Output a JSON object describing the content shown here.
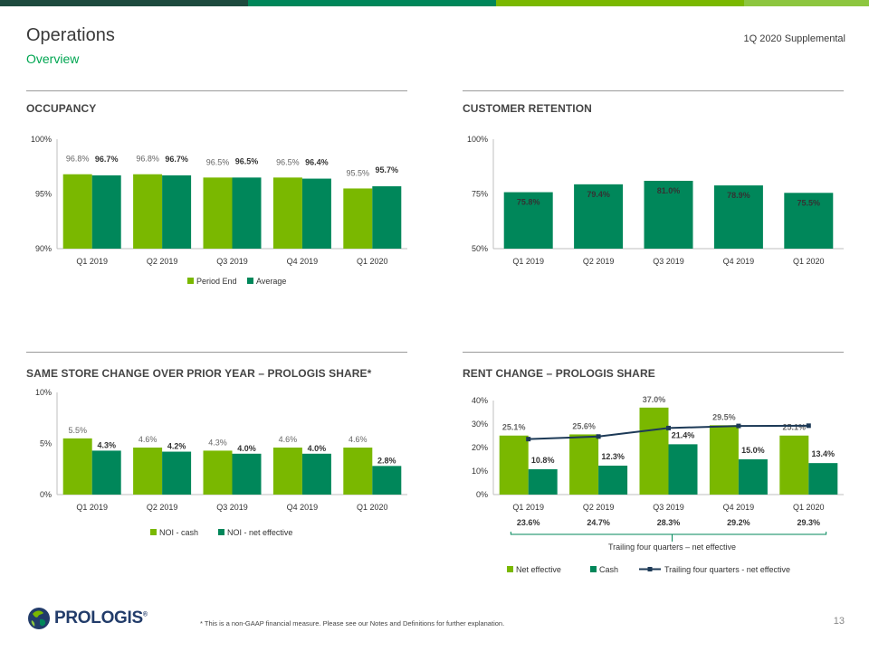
{
  "header": {
    "title": "Operations",
    "subtitle": "Overview",
    "supplemental": "1Q 2020 Supplemental"
  },
  "colors": {
    "light_green": "#7AB800",
    "dark_green": "#00875A",
    "navy": "#1D3A57",
    "top_bar": [
      "#1D4A3E",
      "#00875A",
      "#7AB800",
      "#8DC63F"
    ]
  },
  "sections": {
    "occupancy": "OCCUPANCY",
    "retention": "CUSTOMER RETENTION",
    "same_store": "SAME STORE CHANGE OVER PRIOR YEAR – PROLOGIS SHARE*",
    "rent_change": "RENT CHANGE – PROLOGIS SHARE"
  },
  "chart_data": [
    {
      "id": "occupancy",
      "type": "bar",
      "categories": [
        "Q1 2019",
        "Q2 2019",
        "Q3 2019",
        "Q4 2019",
        "Q1 2020"
      ],
      "series": [
        {
          "name": "Period End",
          "values": [
            96.8,
            96.8,
            96.5,
            96.5,
            95.5
          ],
          "labels": [
            "96.8%",
            "96.8%",
            "96.5%",
            "96.5%",
            "95.5%"
          ],
          "color": "#7AB800"
        },
        {
          "name": "Average",
          "values": [
            96.7,
            96.7,
            96.5,
            96.4,
            95.7
          ],
          "labels": [
            "96.7%",
            "96.7%",
            "96.5%",
            "96.4%",
            "95.7%"
          ],
          "color": "#00875A"
        }
      ],
      "yticks": [
        "90%",
        "95%",
        "100%"
      ],
      "ylim": [
        90,
        100
      ],
      "legend": "bottom"
    },
    {
      "id": "retention",
      "type": "bar",
      "categories": [
        "Q1 2019",
        "Q2 2019",
        "Q3 2019",
        "Q4 2019",
        "Q1 2020"
      ],
      "series": [
        {
          "name": "",
          "values": [
            75.8,
            79.4,
            81.0,
            78.9,
            75.5
          ],
          "labels": [
            "75.8%",
            "79.4%",
            "81.0%",
            "78.9%",
            "75.5%"
          ],
          "color": "#00875A"
        }
      ],
      "yticks": [
        "50%",
        "75%",
        "100%"
      ],
      "ylim": [
        50,
        100
      ]
    },
    {
      "id": "same_store",
      "type": "bar",
      "categories": [
        "Q1 2019",
        "Q2 2019",
        "Q3 2019",
        "Q4 2019",
        "Q1 2020"
      ],
      "series": [
        {
          "name": "NOI - cash",
          "values": [
            5.5,
            4.6,
            4.3,
            4.6,
            4.6
          ],
          "labels": [
            "5.5%",
            "4.6%",
            "4.3%",
            "4.6%",
            "4.6%"
          ],
          "color": "#7AB800"
        },
        {
          "name": "NOI - net effective",
          "values": [
            4.3,
            4.2,
            4.0,
            4.0,
            2.8
          ],
          "labels": [
            "4.3%",
            "4.2%",
            "4.0%",
            "4.0%",
            "2.8%"
          ],
          "color": "#00875A"
        }
      ],
      "yticks": [
        "0%",
        "5%",
        "10%"
      ],
      "ylim": [
        0,
        10
      ],
      "legend": "bottom"
    },
    {
      "id": "rent_change",
      "type": "bar",
      "categories": [
        "Q1 2019",
        "Q2 2019",
        "Q3 2019",
        "Q4 2019",
        "Q1 2020"
      ],
      "series": [
        {
          "name": "Net effective",
          "values": [
            25.1,
            25.6,
            37.0,
            29.5,
            25.1
          ],
          "labels": [
            "25.1%",
            "25.6%",
            "37.0%",
            "29.5%",
            "25.1%"
          ],
          "color": "#7AB800"
        },
        {
          "name": "Cash",
          "values": [
            10.8,
            12.3,
            21.4,
            15.0,
            13.4
          ],
          "labels": [
            "10.8%",
            "12.3%",
            "21.4%",
            "15.0%",
            "13.4%"
          ],
          "color": "#00875A"
        }
      ],
      "line": {
        "name": "Trailing four quarters - net effective",
        "values": [
          23.6,
          24.7,
          28.3,
          29.2,
          29.3
        ],
        "labels": [
          "23.6%",
          "24.7%",
          "28.3%",
          "29.2%",
          "29.3%"
        ],
        "color": "#1D3A57"
      },
      "bracket_label": "Trailing four quarters – net effective",
      "yticks": [
        "0%",
        "10%",
        "20%",
        "30%",
        "40%"
      ],
      "ylim": [
        0,
        40
      ],
      "legend": "bottom"
    }
  ],
  "footer": {
    "footnote": "* This is a non-GAAP financial measure. Please see our Notes and Definitions for further explanation.",
    "page": "13",
    "logo": "PROLOGIS",
    "logo_mark": "®"
  }
}
